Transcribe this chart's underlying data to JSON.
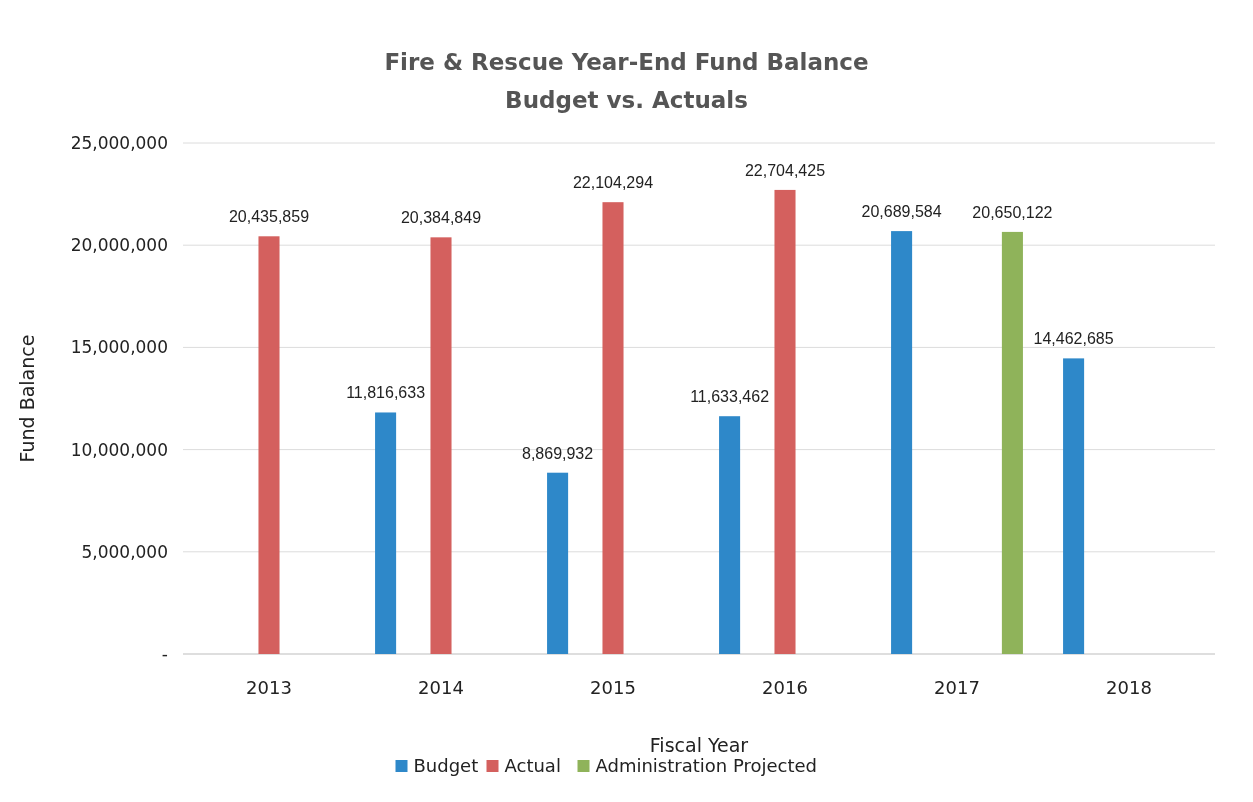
{
  "chart_data": {
    "type": "bar",
    "title": "Fire & Rescue Year-End Fund Balance",
    "subtitle": "Budget vs. Actuals",
    "xlabel": "Fiscal Year",
    "ylabel": "Fund Balance",
    "categories": [
      "2013",
      "2014",
      "2015",
      "2016",
      "2017",
      "2018"
    ],
    "series": [
      {
        "name": "Budget",
        "color": "#2e88c9",
        "values": [
          null,
          11816633,
          8869932,
          11633462,
          20689584,
          14462685
        ],
        "value_labels": [
          null,
          "11,816,633",
          "8,869,932",
          "11,633,462",
          "20,689,584",
          "14,462,685"
        ]
      },
      {
        "name": "Actual",
        "color": "#d4605e",
        "values": [
          20435859,
          20384849,
          22104294,
          22704425,
          null,
          null
        ],
        "value_labels": [
          "20,435,859",
          "20,384,849",
          "22,104,294",
          "22,704,425",
          null,
          null
        ]
      },
      {
        "name": "Administration Projected",
        "color": "#8fb35a",
        "values": [
          null,
          null,
          null,
          null,
          20650122,
          null
        ],
        "value_labels": [
          null,
          null,
          null,
          null,
          "20,650,122",
          null
        ]
      }
    ],
    "ylim": [
      0,
      25000000
    ],
    "yticks": [
      {
        "value": 0,
        "label": "-"
      },
      {
        "value": 5000000,
        "label": "5,000,000"
      },
      {
        "value": 10000000,
        "label": "10,000,000"
      },
      {
        "value": 15000000,
        "label": "15,000,000"
      },
      {
        "value": 20000000,
        "label": "20,000,000"
      },
      {
        "value": 25000000,
        "label": "25,000,000"
      }
    ],
    "grid": "y",
    "legend": "bottom"
  }
}
